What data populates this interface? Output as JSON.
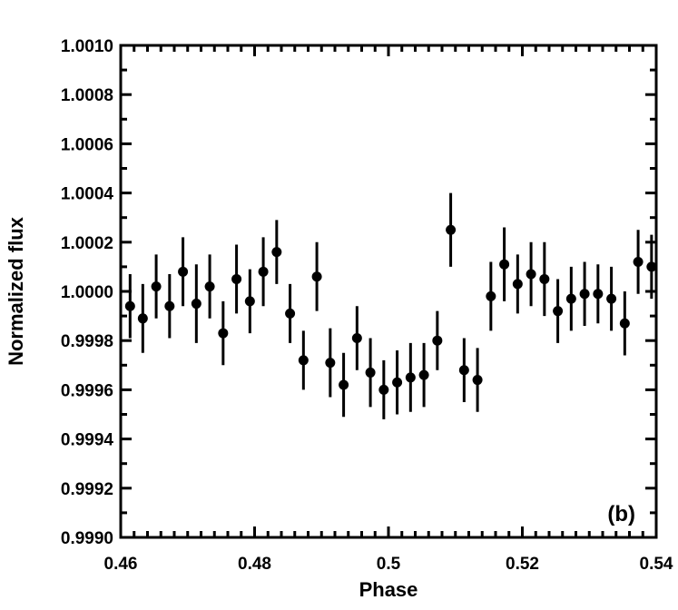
{
  "chart_data": {
    "type": "scatter",
    "title": "",
    "panel_label": "(b)",
    "xlabel": "Phase",
    "ylabel": "Normalized flux",
    "xlim": [
      0.46,
      0.54
    ],
    "ylim": [
      0.999,
      1.001
    ],
    "x_tick_labels": [
      "0.46",
      "0.48",
      "0.5",
      "0.52",
      "0.54"
    ],
    "y_tick_labels": [
      "0.9990",
      "0.9992",
      "0.9994",
      "0.9996",
      "0.9998",
      "1.0000",
      "1.0002",
      "1.0004",
      "1.0006",
      "1.0008",
      "1.0010"
    ],
    "grid": false,
    "legend": "none",
    "marker_color": "#000000",
    "series": [
      {
        "points": [
          {
            "x": 0.4614,
            "y": 0.99994,
            "err": 0.00013
          },
          {
            "x": 0.4633,
            "y": 0.99989,
            "err": 0.00014
          },
          {
            "x": 0.4653,
            "y": 1.00002,
            "err": 0.00013
          },
          {
            "x": 0.4673,
            "y": 0.99994,
            "err": 0.00013
          },
          {
            "x": 0.4693,
            "y": 1.00008,
            "err": 0.00014
          },
          {
            "x": 0.4713,
            "y": 0.99995,
            "err": 0.00016
          },
          {
            "x": 0.4733,
            "y": 1.00002,
            "err": 0.00013
          },
          {
            "x": 0.4753,
            "y": 0.99983,
            "err": 0.00013
          },
          {
            "x": 0.4773,
            "y": 1.00005,
            "err": 0.00014
          },
          {
            "x": 0.4793,
            "y": 0.99996,
            "err": 0.00013
          },
          {
            "x": 0.4813,
            "y": 1.00008,
            "err": 0.00014
          },
          {
            "x": 0.4833,
            "y": 1.00016,
            "err": 0.00013
          },
          {
            "x": 0.4853,
            "y": 0.99991,
            "err": 0.00012
          },
          {
            "x": 0.4873,
            "y": 0.99972,
            "err": 0.00012
          },
          {
            "x": 0.4893,
            "y": 1.00006,
            "err": 0.00014
          },
          {
            "x": 0.4913,
            "y": 0.99971,
            "err": 0.00014
          },
          {
            "x": 0.4933,
            "y": 0.99962,
            "err": 0.00013
          },
          {
            "x": 0.4953,
            "y": 0.99981,
            "err": 0.00013
          },
          {
            "x": 0.4973,
            "y": 0.99967,
            "err": 0.00014
          },
          {
            "x": 0.4993,
            "y": 0.9996,
            "err": 0.00012
          },
          {
            "x": 0.5013,
            "y": 0.99963,
            "err": 0.00013
          },
          {
            "x": 0.5033,
            "y": 0.99965,
            "err": 0.00014
          },
          {
            "x": 0.5053,
            "y": 0.99966,
            "err": 0.00013
          },
          {
            "x": 0.5073,
            "y": 0.9998,
            "err": 0.00012
          },
          {
            "x": 0.5093,
            "y": 1.00025,
            "err": 0.00015
          },
          {
            "x": 0.5113,
            "y": 0.99968,
            "err": 0.00013
          },
          {
            "x": 0.5133,
            "y": 0.99964,
            "err": 0.00013
          },
          {
            "x": 0.5153,
            "y": 0.99998,
            "err": 0.00014
          },
          {
            "x": 0.5173,
            "y": 1.00011,
            "err": 0.00015
          },
          {
            "x": 0.5193,
            "y": 1.00003,
            "err": 0.00012
          },
          {
            "x": 0.5213,
            "y": 1.00007,
            "err": 0.00013
          },
          {
            "x": 0.5233,
            "y": 1.00005,
            "err": 0.00015
          },
          {
            "x": 0.5253,
            "y": 0.99992,
            "err": 0.00013
          },
          {
            "x": 0.5273,
            "y": 0.99997,
            "err": 0.00013
          },
          {
            "x": 0.5293,
            "y": 0.99999,
            "err": 0.00013
          },
          {
            "x": 0.5313,
            "y": 0.99999,
            "err": 0.00012
          },
          {
            "x": 0.5333,
            "y": 0.99997,
            "err": 0.00013
          },
          {
            "x": 0.5353,
            "y": 0.99987,
            "err": 0.00013
          },
          {
            "x": 0.5373,
            "y": 1.00012,
            "err": 0.00013
          },
          {
            "x": 0.5393,
            "y": 1.0001,
            "err": 0.00013
          }
        ]
      }
    ]
  }
}
